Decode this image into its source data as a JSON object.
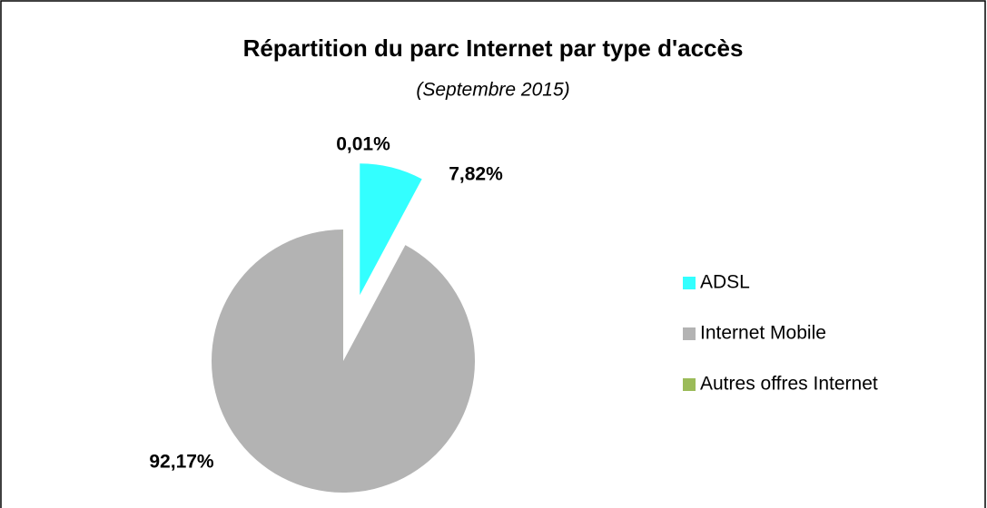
{
  "chart_data": {
    "type": "pie",
    "title": "Répartition du parc Internet par type d'accès",
    "subtitle": "(Septembre 2015)",
    "categories": [
      "ADSL",
      "Internet Mobile",
      "Autres offres Internet"
    ],
    "values": [
      7.82,
      92.17,
      0.01
    ],
    "value_labels": [
      "7,82%",
      "92,17%",
      "0,01%"
    ],
    "colors": [
      "#33ffff",
      "#b3b3b3",
      "#9bbb59"
    ],
    "legend": "right"
  }
}
